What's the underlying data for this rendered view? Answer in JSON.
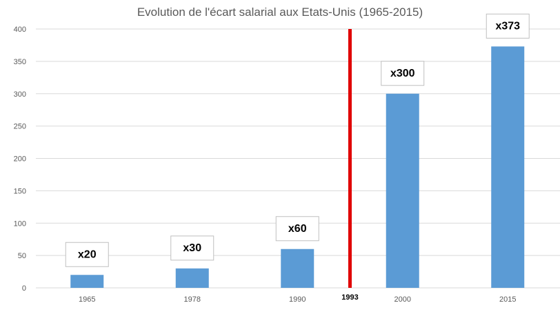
{
  "chart_data": {
    "type": "bar",
    "title": "Evolution de l'écart salarial aux Etats-Unis (1965-2015)",
    "categories": [
      "1965",
      "1978",
      "1990",
      "2000",
      "2015"
    ],
    "values": [
      20,
      30,
      60,
      300,
      373
    ],
    "data_labels": [
      "x20",
      "x30",
      "x60",
      "x300",
      "x373"
    ],
    "ylim": [
      0,
      400
    ],
    "yticks": [
      "0",
      "50",
      "100",
      "150",
      "200",
      "250",
      "300",
      "350",
      "400"
    ],
    "grid": true,
    "bar_color": "#5b9bd5",
    "marker": {
      "label": "1993",
      "color": "#e00000",
      "between": [
        "1990",
        "2000"
      ]
    }
  }
}
